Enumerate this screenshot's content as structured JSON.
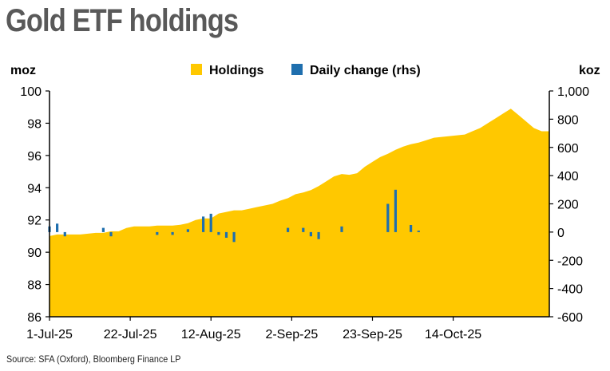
{
  "title": "Gold ETF holdings",
  "source": "Source: SFA (Oxford), Bloomberg Finance LP",
  "colors": {
    "holdings": "#FFC800",
    "daily_change": "#1F6FAE",
    "title": "#595959"
  },
  "chart_data": {
    "type": "area",
    "title": "Gold ETF holdings",
    "ylabel_left": "moz",
    "ylabel_right": "koz",
    "ylim_left": [
      86,
      100
    ],
    "ylim_right": [
      -600,
      1000
    ],
    "yticks_left": [
      "100",
      "98",
      "96",
      "94",
      "92",
      "90",
      "88",
      "86"
    ],
    "yticks_right": [
      "1,000",
      "800",
      "600",
      "400",
      "200",
      "0",
      "-200",
      "-400",
      "-600"
    ],
    "xticks": [
      "1-Jul-25",
      "22-Jul-25",
      "12-Aug-25",
      "2-Sep-25",
      "23-Sep-25",
      "14-Oct-25"
    ],
    "legend": [
      "Holdings",
      "Daily change (rhs)"
    ],
    "legend_position": "top",
    "series": [
      {
        "name": "Holdings",
        "type": "area",
        "axis": "left",
        "values": [
          91.0,
          91.1,
          91.1,
          91.1,
          91.1,
          91.15,
          91.2,
          91.2,
          91.3,
          91.3,
          91.5,
          91.6,
          91.6,
          91.6,
          91.65,
          91.65,
          91.65,
          91.7,
          91.8,
          92.0,
          92.1,
          92.1,
          92.4,
          92.5,
          92.6,
          92.6,
          92.7,
          92.8,
          92.9,
          93.0,
          93.2,
          93.35,
          93.6,
          93.7,
          93.85,
          94.1,
          94.4,
          94.7,
          94.85,
          94.8,
          94.9,
          95.3,
          95.6,
          95.9,
          96.1,
          96.35,
          96.55,
          96.7,
          96.8,
          96.95,
          97.1,
          97.15,
          97.2,
          97.25,
          97.3,
          97.5,
          97.7,
          98.0,
          98.3,
          98.6,
          98.9,
          98.5,
          98.1,
          97.7,
          97.5,
          97.5
        ]
      },
      {
        "name": "Daily change (rhs)",
        "type": "bar",
        "axis": "right",
        "values": [
          40,
          60,
          -30,
          0,
          0,
          0,
          0,
          30,
          -30,
          0,
          0,
          0,
          0,
          0,
          -20,
          0,
          -20,
          0,
          20,
          0,
          110,
          130,
          -20,
          -40,
          -70,
          0,
          0,
          0,
          0,
          0,
          0,
          30,
          0,
          30,
          -30,
          -50,
          0,
          0,
          40,
          0,
          0,
          0,
          0,
          0,
          200,
          300,
          0,
          50,
          10,
          0,
          0,
          0,
          0,
          0,
          0,
          0,
          0,
          0,
          0,
          0,
          0,
          0,
          0,
          0,
          0,
          0
        ]
      }
    ]
  }
}
